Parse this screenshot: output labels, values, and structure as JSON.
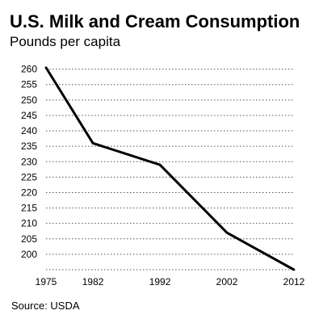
{
  "chart_data": {
    "type": "line",
    "title": "U.S. Milk and Cream Consumption",
    "subtitle": "Pounds per capita",
    "source": "Source: USDA",
    "xlabel": "",
    "ylabel": "",
    "x_tick_labels": [
      "1975",
      "1982",
      "1992",
      "2002",
      "2012"
    ],
    "y_tick_labels": [
      "200",
      "205",
      "210",
      "215",
      "220",
      "225",
      "230",
      "235",
      "240",
      "245",
      "250",
      "255",
      "260"
    ],
    "ylim": [
      195,
      262
    ],
    "grid": true,
    "series": [
      {
        "x": [
          1975,
          1982,
          1992,
          2002,
          2012
        ],
        "values": [
          260.5,
          236,
          229,
          207,
          195
        ]
      }
    ],
    "colors": {
      "line": "#000000",
      "grid": "#555555",
      "text": "#000000"
    }
  }
}
